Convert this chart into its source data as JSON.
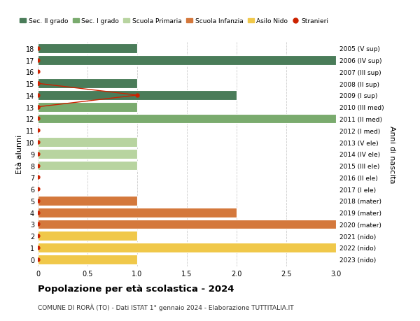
{
  "ages": [
    18,
    17,
    16,
    15,
    14,
    13,
    12,
    11,
    10,
    9,
    8,
    7,
    6,
    5,
    4,
    3,
    2,
    1,
    0
  ],
  "right_labels": [
    "2005 (V sup)",
    "2006 (IV sup)",
    "2007 (III sup)",
    "2008 (II sup)",
    "2009 (I sup)",
    "2010 (III med)",
    "2011 (II med)",
    "2012 (I med)",
    "2013 (V ele)",
    "2014 (IV ele)",
    "2015 (III ele)",
    "2016 (II ele)",
    "2017 (I ele)",
    "2018 (mater)",
    "2019 (mater)",
    "2020 (mater)",
    "2021 (nido)",
    "2022 (nido)",
    "2023 (nido)"
  ],
  "bar_values": [
    1,
    3,
    0,
    1,
    2,
    1,
    3,
    0,
    1,
    1,
    1,
    0,
    0,
    1,
    2,
    3,
    1,
    3,
    1
  ],
  "bar_colors": [
    "#4a7c59",
    "#4a7c59",
    "#4a7c59",
    "#4a7c59",
    "#4a7c59",
    "#7aab6e",
    "#7aab6e",
    "#7aab6e",
    "#b8d4a0",
    "#b8d4a0",
    "#b8d4a0",
    "#b8d4a0",
    "#b8d4a0",
    "#d4783c",
    "#d4783c",
    "#d4783c",
    "#f0c84a",
    "#f0c84a",
    "#f0c84a"
  ],
  "stranieri_ages_with_dot": [
    18,
    17,
    16,
    15,
    14,
    13,
    12,
    11,
    10,
    9,
    8,
    7,
    6,
    5,
    4,
    3,
    2,
    1,
    0
  ],
  "stranieri_line_ages": [
    15,
    14,
    13
  ],
  "stranieri_line_xvals": [
    0,
    1,
    0
  ],
  "sec2_color": "#4a7c59",
  "sec1_color": "#7aab6e",
  "primaria_color": "#b8d4a0",
  "infanzia_color": "#d4783c",
  "nido_color": "#f0c84a",
  "stranieri_color": "#cc2200",
  "title": "Popolazione per età scolastica - 2024",
  "subtitle": "COMUNE DI RORÀ (TO) - Dati ISTAT 1° gennaio 2024 - Elaborazione TUTTITALIA.IT",
  "ylabel_left": "Età alunni",
  "ylabel_right": "Anni di nascita",
  "xlim": [
    0,
    3.0
  ],
  "xticks": [
    0,
    0.5,
    1.0,
    1.5,
    2.0,
    2.5,
    3.0
  ],
  "xticklabels": [
    "0",
    "0.5",
    "1.0",
    "1.5",
    "2.0",
    "2.5",
    "3.0"
  ],
  "background_color": "#ffffff",
  "grid_color": "#cccccc"
}
